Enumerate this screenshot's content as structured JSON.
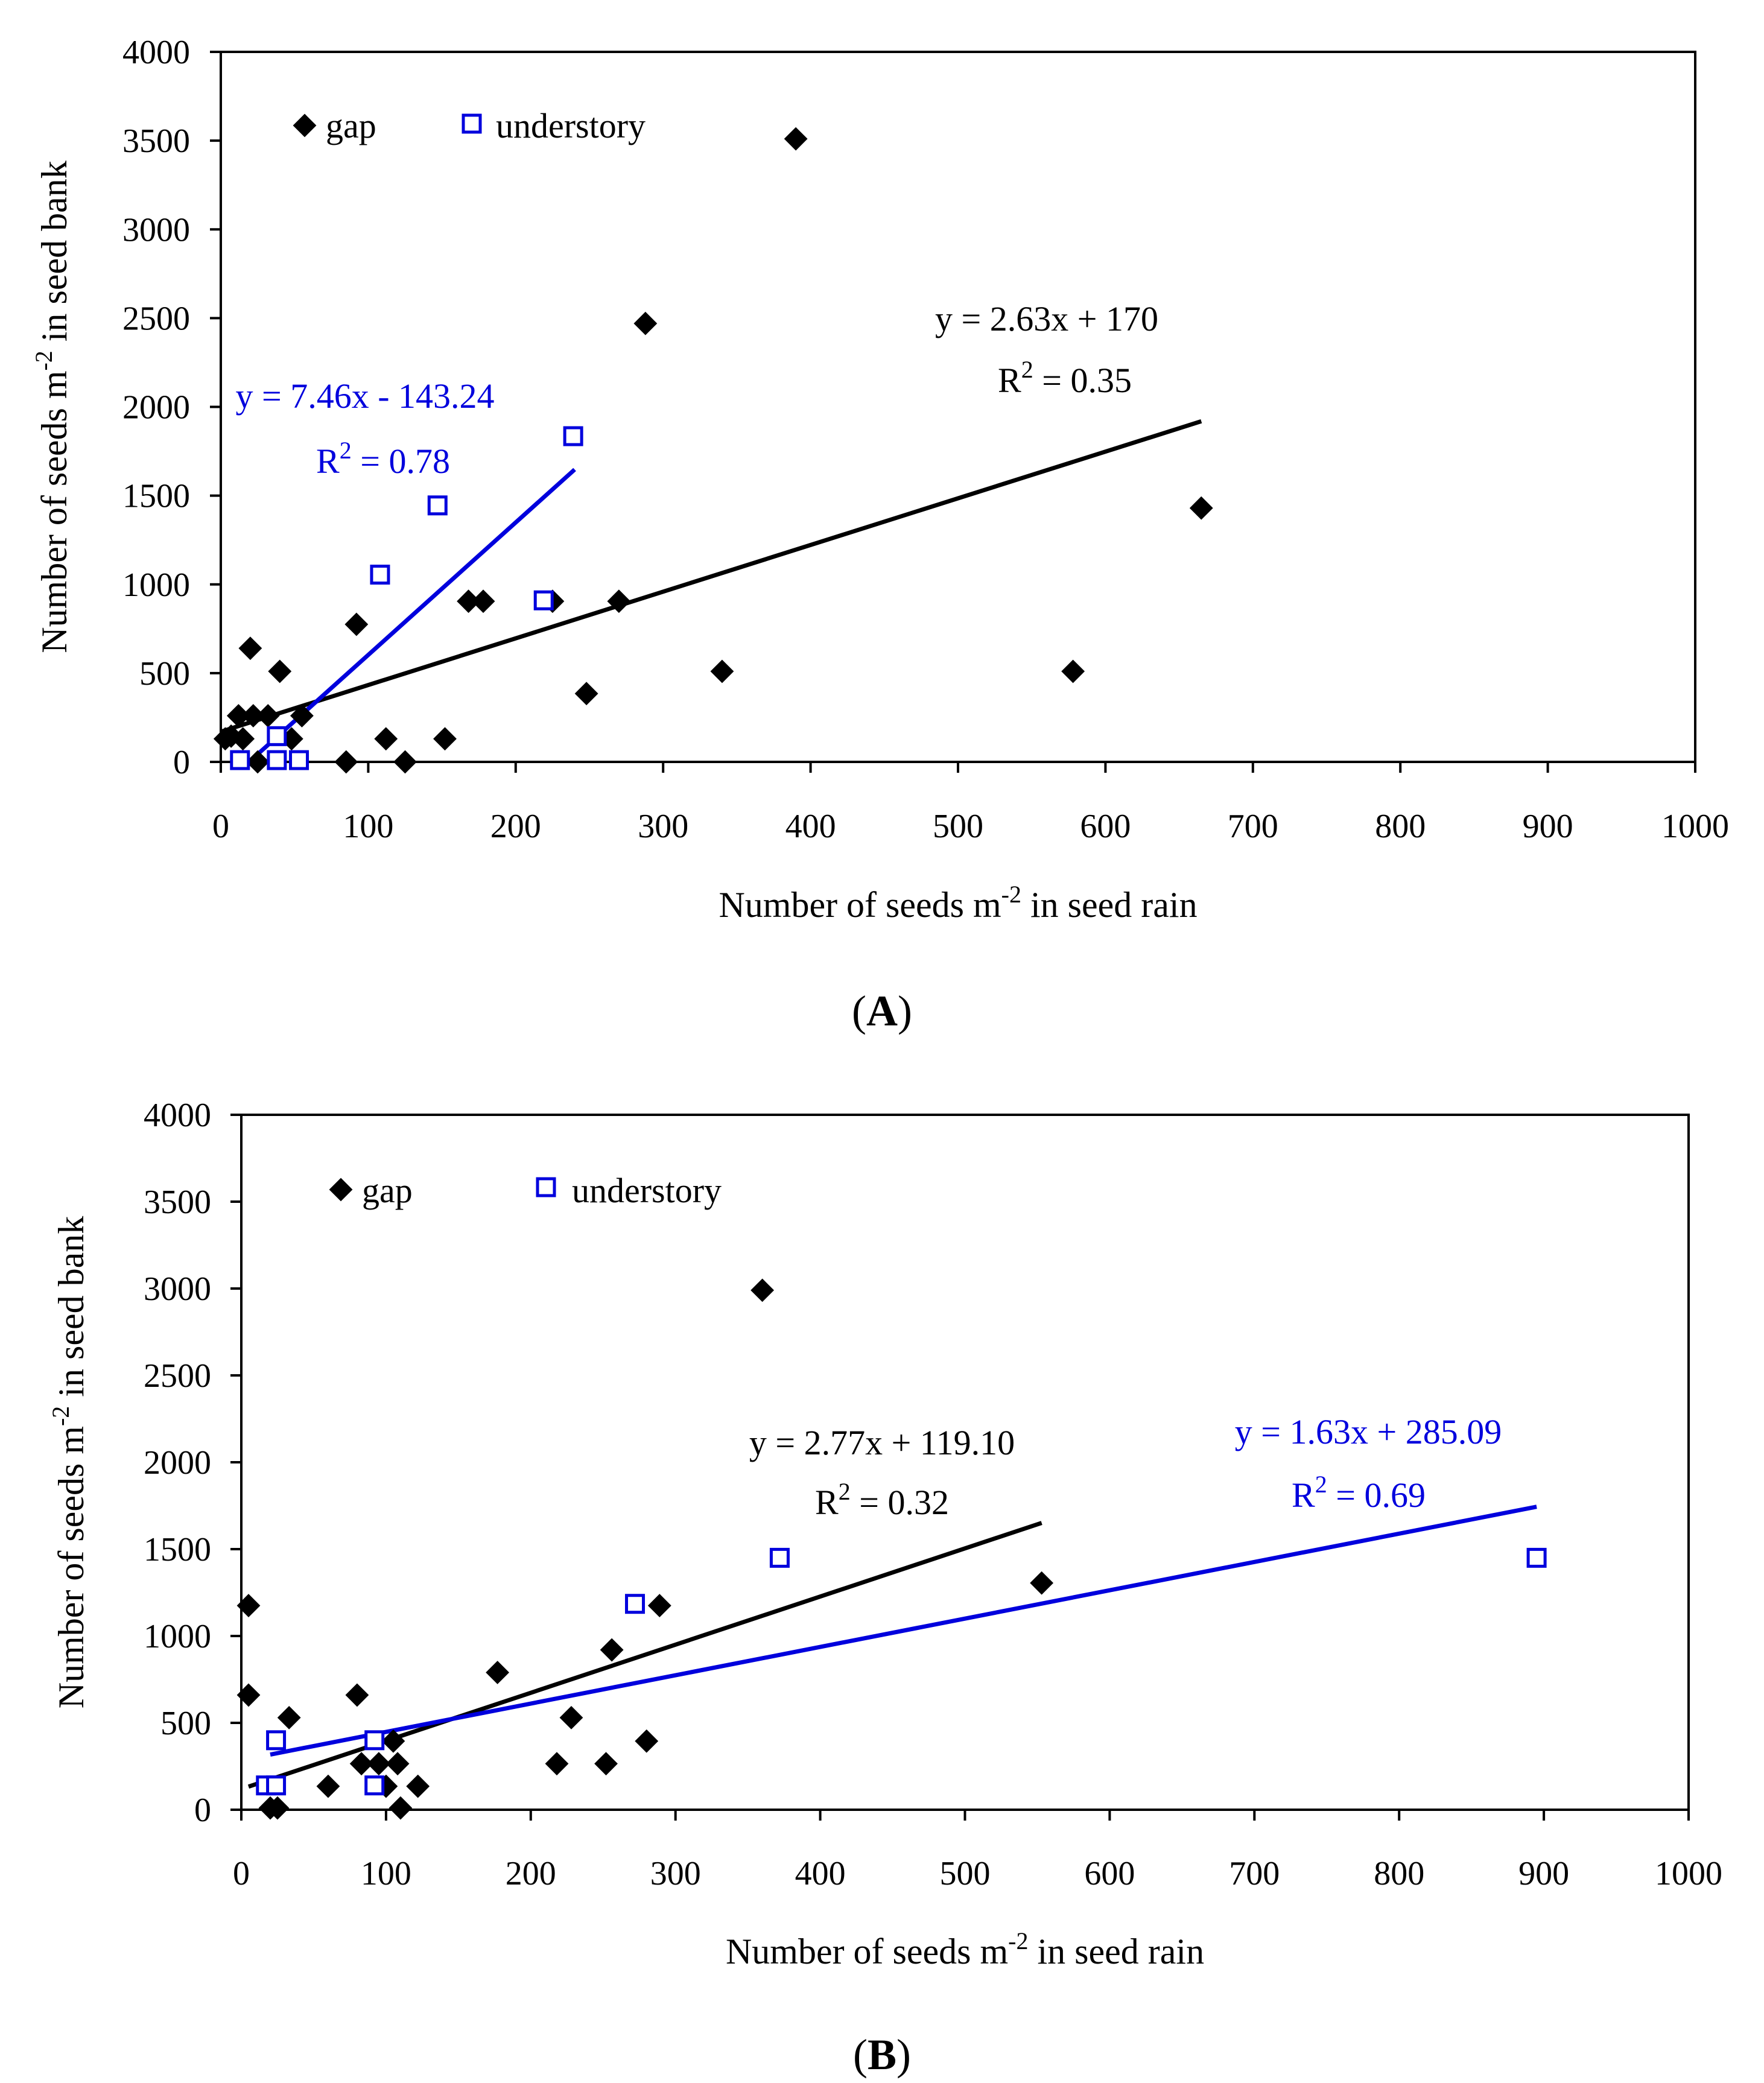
{
  "colors": {
    "gap": "#000000",
    "understory": "#0000dd",
    "axis": "#000000",
    "background": "#ffffff"
  },
  "icons": {
    "gap_marker": "filled-diamond-icon",
    "understory_marker": "open-square-icon"
  },
  "chart_data": [
    {
      "panel_label": "A",
      "type": "scatter",
      "title": "",
      "xlabel": {
        "text": "Number of seeds m",
        "sup": "-2",
        "tail": " in seed rain"
      },
      "ylabel": {
        "text": "Number of seeds m",
        "sup": "-2",
        "tail": " in seed bank"
      },
      "xlim": [
        0,
        1000
      ],
      "ylim": [
        0,
        4000
      ],
      "xticks": [
        0,
        100,
        200,
        300,
        400,
        500,
        600,
        700,
        800,
        900,
        1000
      ],
      "yticks": [
        0,
        500,
        1000,
        1500,
        2000,
        2500,
        3000,
        3500,
        4000
      ],
      "legend": [
        "gap",
        "understory"
      ],
      "legend_placement": "top-left",
      "series": [
        {
          "name": "gap",
          "marker": "diamond",
          "points": [
            [
              3,
              130
            ],
            [
              7,
              145
            ],
            [
              12,
              260
            ],
            [
              15,
              130
            ],
            [
              20,
              640
            ],
            [
              22,
              260
            ],
            [
              25,
              0
            ],
            [
              32,
              260
            ],
            [
              40,
              510
            ],
            [
              48,
              130
            ],
            [
              55,
              260
            ],
            [
              85,
              0
            ],
            [
              92,
              775
            ],
            [
              112,
              130
            ],
            [
              125,
              0
            ],
            [
              152,
              130
            ],
            [
              168,
              905
            ],
            [
              178,
              905
            ],
            [
              225,
              905
            ],
            [
              248,
              385
            ],
            [
              270,
              905
            ],
            [
              288,
              2470
            ],
            [
              340,
              510
            ],
            [
              390,
              3510
            ],
            [
              578,
              510
            ],
            [
              665,
              1430
            ]
          ],
          "fit": {
            "slope": 2.63,
            "intercept": 170,
            "x_range": [
              0,
              665
            ]
          },
          "equation": "y = 2.63x + 170",
          "r2_label": "R",
          "r2_sup": "2",
          "r2_value": " = 0.35"
        },
        {
          "name": "understory",
          "marker": "square",
          "points": [
            [
              13,
              10
            ],
            [
              38,
              10
            ],
            [
              53,
              10
            ],
            [
              38,
              145
            ],
            [
              108,
              1055
            ],
            [
              147,
              1445
            ],
            [
              219,
              910
            ],
            [
              239,
              1835
            ]
          ],
          "fit": {
            "slope": 7.46,
            "intercept": -143.24,
            "x_range": [
              19,
              240
            ]
          },
          "equation": "y = 7.46x - 143.24",
          "r2_label": "R",
          "r2_sup": "2",
          "r2_value": " = 0.78"
        }
      ]
    },
    {
      "panel_label": "B",
      "type": "scatter",
      "title": "",
      "xlabel": {
        "text": "Number of seeds m",
        "sup": "-2",
        "tail": " in seed rain"
      },
      "ylabel": {
        "text": "Number of seeds m",
        "sup": "-2",
        "tail": " in seed bank"
      },
      "xlim": [
        0,
        1000
      ],
      "ylim": [
        0,
        4000
      ],
      "xticks": [
        0,
        100,
        200,
        300,
        400,
        500,
        600,
        700,
        800,
        900,
        1000
      ],
      "yticks": [
        0,
        500,
        1000,
        1500,
        2000,
        2500,
        3000,
        3500,
        4000
      ],
      "legend": [
        "gap",
        "understory"
      ],
      "legend_placement": "top-left",
      "series": [
        {
          "name": "gap",
          "marker": "diamond",
          "points": [
            [
              5,
              1175
            ],
            [
              5,
              660
            ],
            [
              20,
              10
            ],
            [
              25,
              10
            ],
            [
              33,
              530
            ],
            [
              60,
              135
            ],
            [
              80,
              660
            ],
            [
              83,
              265
            ],
            [
              95,
              265
            ],
            [
              100,
              135
            ],
            [
              105,
              395
            ],
            [
              108,
              265
            ],
            [
              110,
              10
            ],
            [
              122,
              135
            ],
            [
              177,
              790
            ],
            [
              218,
              265
            ],
            [
              228,
              530
            ],
            [
              252,
              265
            ],
            [
              256,
              920
            ],
            [
              280,
              395
            ],
            [
              289,
              1175
            ],
            [
              360,
              2990
            ],
            [
              553,
              1305
            ]
          ],
          "fit": {
            "slope": 2.77,
            "intercept": 119.1,
            "x_range": [
              5,
              553
            ]
          },
          "equation": "y = 2.77x + 119.10",
          "r2_label": "R",
          "r2_sup": "2",
          "r2_value": " = 0.32"
        },
        {
          "name": "understory",
          "marker": "square",
          "points": [
            [
              17,
              140
            ],
            [
              24,
              400
            ],
            [
              24,
              140
            ],
            [
              92,
              400
            ],
            [
              92,
              140
            ],
            [
              272,
              1185
            ],
            [
              372,
              1450
            ],
            [
              895,
              1450
            ]
          ],
          "fit": {
            "slope": 1.63,
            "intercept": 285.09,
            "x_range": [
              20,
              895
            ]
          },
          "equation": "y = 1.63x + 285.09",
          "r2_label": "R",
          "r2_sup": "2",
          "r2_value": " = 0.69"
        }
      ]
    }
  ]
}
